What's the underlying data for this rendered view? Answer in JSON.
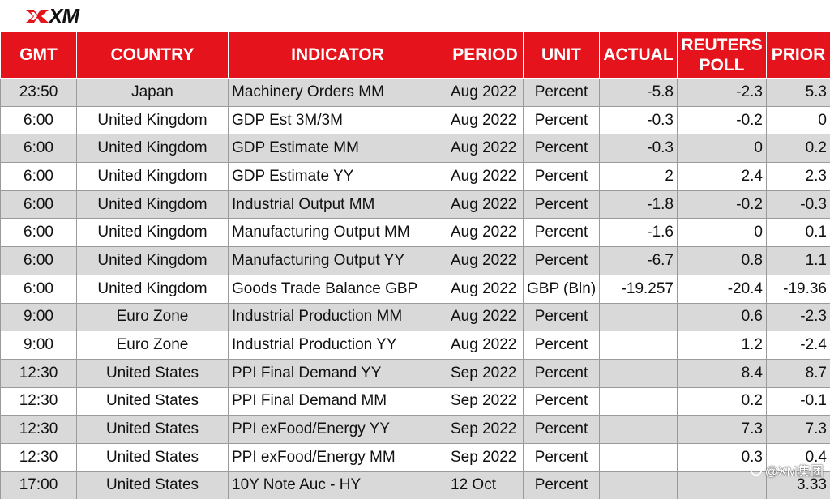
{
  "brand": {
    "logo_text": "XM",
    "accent_color": "#e5131b"
  },
  "table": {
    "headers": [
      "GMT",
      "COUNTRY",
      "INDICATOR",
      "PERIOD",
      "UNIT",
      "ACTUAL",
      "REUTERS POLL",
      "PRIOR"
    ],
    "rows": [
      [
        "23:50",
        "Japan",
        "Machinery Orders MM",
        "Aug 2022",
        "Percent",
        "-5.8",
        "-2.3",
        "5.3"
      ],
      [
        "6:00",
        "United Kingdom",
        "GDP Est 3M/3M",
        "Aug 2022",
        "Percent",
        "-0.3",
        "-0.2",
        "0"
      ],
      [
        "6:00",
        "United Kingdom",
        "GDP Estimate MM",
        "Aug 2022",
        "Percent",
        "-0.3",
        "0",
        "0.2"
      ],
      [
        "6:00",
        "United Kingdom",
        "GDP Estimate YY",
        "Aug 2022",
        "Percent",
        "2",
        "2.4",
        "2.3"
      ],
      [
        "6:00",
        "United Kingdom",
        "Industrial Output MM",
        "Aug 2022",
        "Percent",
        "-1.8",
        "-0.2",
        "-0.3"
      ],
      [
        "6:00",
        "United Kingdom",
        "Manufacturing Output MM",
        "Aug 2022",
        "Percent",
        "-1.6",
        "0",
        "0.1"
      ],
      [
        "6:00",
        "United Kingdom",
        "Manufacturing Output YY",
        "Aug 2022",
        "Percent",
        "-6.7",
        "0.8",
        "1.1"
      ],
      [
        "6:00",
        "United Kingdom",
        "Goods Trade Balance GBP",
        "Aug 2022",
        "GBP (Bln)",
        "-19.257",
        "-20.4",
        "-19.36"
      ],
      [
        "9:00",
        "Euro Zone",
        "Industrial Production MM",
        "Aug 2022",
        "Percent",
        "",
        "0.6",
        "-2.3"
      ],
      [
        "9:00",
        "Euro Zone",
        "Industrial Production YY",
        "Aug 2022",
        "Percent",
        "",
        "1.2",
        "-2.4"
      ],
      [
        "12:30",
        "United States",
        "PPI Final Demand YY",
        "Sep 2022",
        "Percent",
        "",
        "8.4",
        "8.7"
      ],
      [
        "12:30",
        "United States",
        "PPI Final Demand MM",
        "Sep 2022",
        "Percent",
        "",
        "0.2",
        "-0.1"
      ],
      [
        "12:30",
        "United States",
        "PPI exFood/Energy YY",
        "Sep 2022",
        "Percent",
        "",
        "7.3",
        "7.3"
      ],
      [
        "12:30",
        "United States",
        "PPI exFood/Energy MM",
        "Sep 2022",
        "Percent",
        "",
        "0.3",
        "0.4"
      ],
      [
        "17:00",
        "United States",
        "10Y Note Auc - HY",
        "12 Oct",
        "Percent",
        "",
        "",
        "3.33"
      ]
    ]
  },
  "watermark": {
    "text": "@XM集团"
  }
}
